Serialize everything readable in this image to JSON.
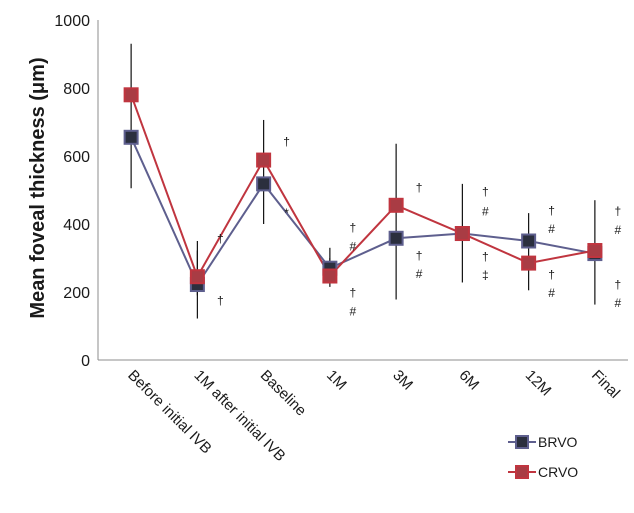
{
  "chart_data": {
    "type": "line",
    "title": "",
    "xlabel": "",
    "ylabel": "Mean foveal thickness (μm)",
    "ylim": [
      0,
      1000
    ],
    "yticks": [
      0,
      200,
      400,
      600,
      800,
      1000
    ],
    "grid": false,
    "legend_position": "bottom-right",
    "categories": [
      "Before initial IVB",
      "1M after initial IVB",
      "Baseline",
      "1M",
      "3M",
      "6M",
      "12M",
      "Final"
    ],
    "series": [
      {
        "name": "BRVO",
        "color": "#5e5f8e",
        "marker_fill": "#2b2f3e",
        "values": [
          655,
          222,
          518,
          270,
          358,
          372,
          350,
          313
        ],
        "error_low": [
          505,
          122,
          400,
          215,
          178,
          228,
          205,
          163
        ],
        "error_high": [
          930,
          322,
          706,
          300,
          636,
          518,
          432,
          470
        ]
      },
      {
        "name": "CRVO",
        "color": "#c0353f",
        "marker_fill": "#a93c44",
        "values": [
          780,
          245,
          588,
          247,
          455,
          372,
          285,
          322
        ],
        "error_low": [
          780,
          190,
          588,
          230,
          455,
          372,
          285,
          322
        ],
        "error_high": [
          780,
          350,
          588,
          330,
          455,
          372,
          285,
          322
        ]
      }
    ],
    "annotations": [
      {
        "category_index": 1,
        "value": 358,
        "text": "†"
      },
      {
        "category_index": 1,
        "value": 175,
        "text": "†"
      },
      {
        "category_index": 2,
        "value": 642,
        "text": "†"
      },
      {
        "category_index": 2,
        "value": 433,
        "text": "*"
      },
      {
        "category_index": 3,
        "value": 390,
        "text": "†"
      },
      {
        "category_index": 3,
        "value": 334,
        "text": "#"
      },
      {
        "category_index": 3,
        "value": 198,
        "text": "†"
      },
      {
        "category_index": 3,
        "value": 142,
        "text": "#"
      },
      {
        "category_index": 4,
        "value": 508,
        "text": "†"
      },
      {
        "category_index": 4,
        "value": 308,
        "text": "†"
      },
      {
        "category_index": 4,
        "value": 253,
        "text": "#"
      },
      {
        "category_index": 5,
        "value": 495,
        "text": "†"
      },
      {
        "category_index": 5,
        "value": 437,
        "text": "#"
      },
      {
        "category_index": 5,
        "value": 305,
        "text": "†"
      },
      {
        "category_index": 5,
        "value": 250,
        "text": "‡"
      },
      {
        "category_index": 6,
        "value": 440,
        "text": "†"
      },
      {
        "category_index": 6,
        "value": 385,
        "text": "#"
      },
      {
        "category_index": 6,
        "value": 252,
        "text": "†"
      },
      {
        "category_index": 6,
        "value": 197,
        "text": "#"
      },
      {
        "category_index": 7,
        "value": 438,
        "text": "†"
      },
      {
        "category_index": 7,
        "value": 383,
        "text": "#"
      },
      {
        "category_index": 7,
        "value": 222,
        "text": "†"
      },
      {
        "category_index": 7,
        "value": 167,
        "text": "#"
      }
    ]
  }
}
